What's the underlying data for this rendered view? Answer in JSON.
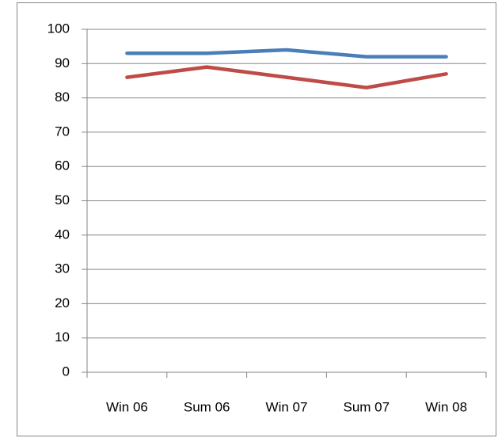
{
  "chart_data": {
    "type": "line",
    "categories": [
      "Win 06",
      "Sum 06",
      "Win 07",
      "Sum 07",
      "Win 08"
    ],
    "series": [
      {
        "color": "#4a7ebb",
        "values": [
          93,
          93,
          94,
          92,
          92
        ]
      },
      {
        "color": "#be4b48",
        "values": [
          86,
          89,
          86,
          83,
          87
        ]
      }
    ],
    "ylim": [
      0,
      100
    ],
    "yticks": [
      0,
      10,
      20,
      30,
      40,
      50,
      60,
      70,
      80,
      90,
      100
    ],
    "grid": true
  }
}
